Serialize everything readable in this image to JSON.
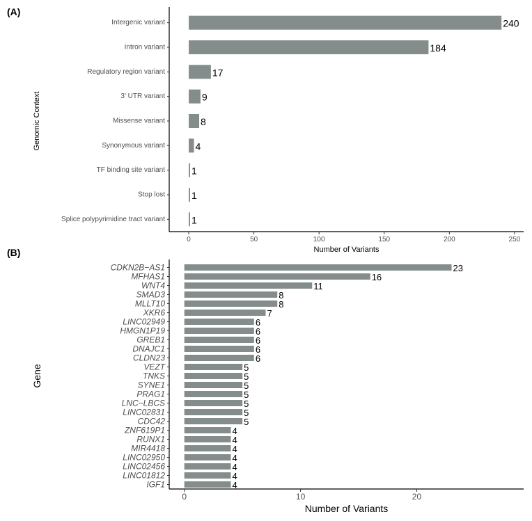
{
  "colors": {
    "bar": "#848c8c",
    "axis": "#000000",
    "text": "#4d4d4d"
  },
  "chart_data": [
    {
      "panel": "(A)",
      "type": "bar",
      "orientation": "horizontal",
      "categories": [
        "Intergenic variant",
        "Intron variant",
        "Regulatory region variant",
        "3' UTR variant",
        "Missense variant",
        "Synonymous variant",
        "TF binding site variant",
        "Stop lost",
        "Splice polypyrimidine tract variant"
      ],
      "values": [
        240,
        184,
        17,
        9,
        8,
        4,
        1,
        1,
        1
      ],
      "xlabel": "Number of Variants",
      "ylabel": "Genomic Context",
      "xticks": [
        0,
        50,
        100,
        150,
        200,
        250
      ],
      "xlim": [
        -15,
        257
      ]
    },
    {
      "panel": "(B)",
      "type": "bar",
      "orientation": "horizontal",
      "categories": [
        "CDKN2B−AS1",
        "MFHAS1",
        "WNT4",
        "SMAD3",
        "MLLT10",
        "XKR6",
        "LINC02949",
        "HMGN1P19",
        "GREB1",
        "DNAJC1",
        "CLDN23",
        "VEZT",
        "TNKS",
        "SYNE1",
        "PRAG1",
        "LNC−LBCS",
        "LINC02831",
        "CDC42",
        "ZNF619P1",
        "RUNX1",
        "MIR4418",
        "LINC02950",
        "LINC02456",
        "LINC01812",
        "IGF1"
      ],
      "values": [
        23,
        16,
        11,
        8,
        8,
        7,
        6,
        6,
        6,
        6,
        6,
        5,
        5,
        5,
        5,
        5,
        5,
        5,
        4,
        4,
        4,
        4,
        4,
        4,
        4
      ],
      "xlabel": "Number of Variants",
      "ylabel": "Gene",
      "xticks": [
        0,
        10,
        20
      ],
      "xlim": [
        -1.3,
        29.2
      ]
    }
  ]
}
